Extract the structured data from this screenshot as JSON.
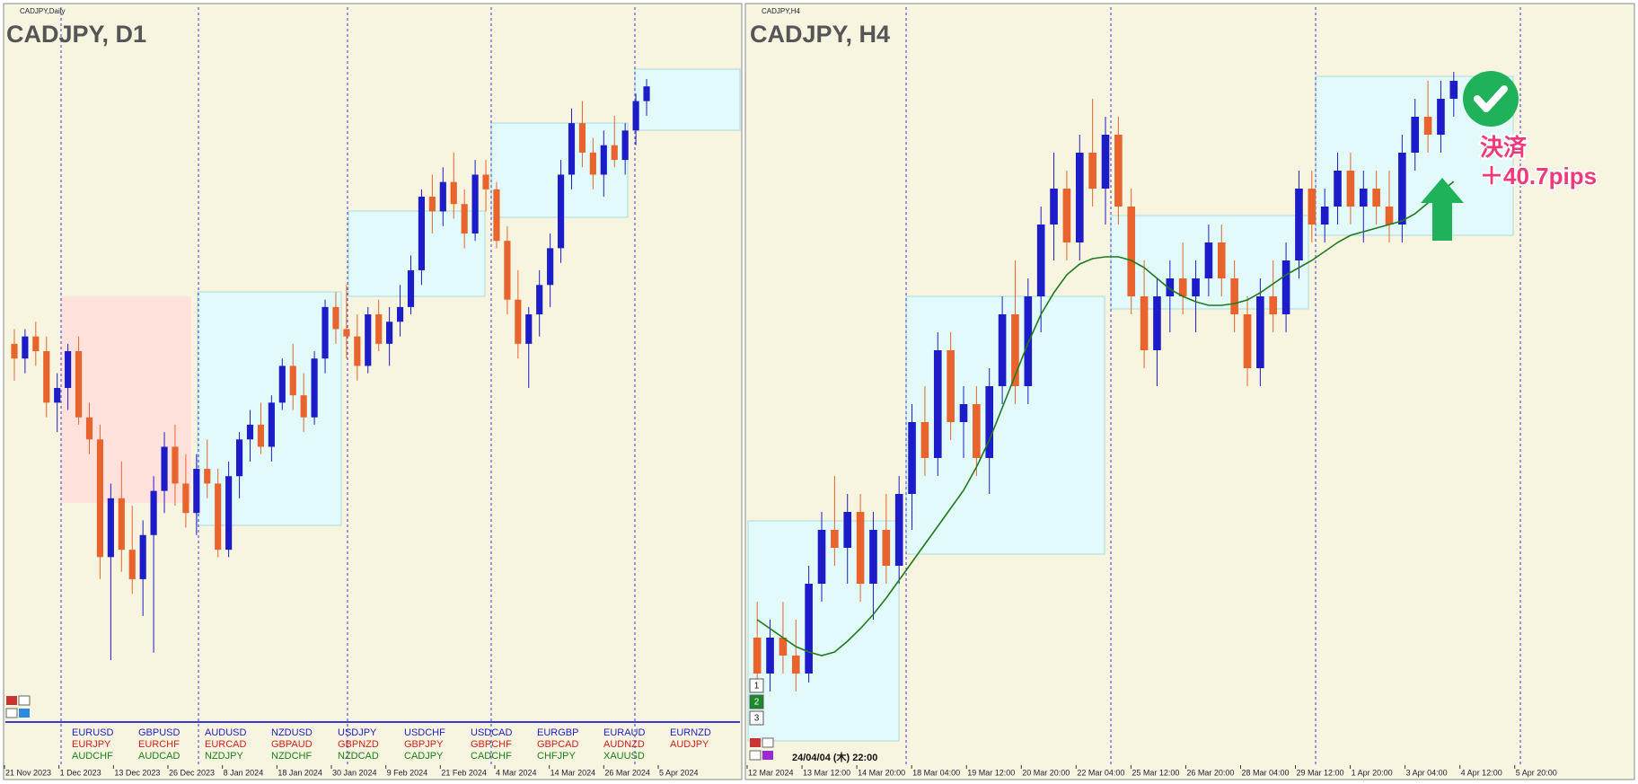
{
  "panels": [
    {
      "caption": "CADJPY,Daily",
      "title": "CADJPY, D1",
      "dates": [
        "21 Nov 2023",
        "1 Dec 2023",
        "13 Dec 2023",
        "26 Dec 2023",
        "8 Jan 2024",
        "18 Jan 2024",
        "30 Jan 2024",
        "9 Feb 2024",
        "21 Feb 2024",
        "4 Mar 2024",
        "14 Mar 2024",
        "26 Mar 2024",
        "5 Apr 2024"
      ],
      "candles": [
        [
          108.8,
          109.0,
          108.3,
          108.6
        ],
        [
          108.6,
          109.0,
          108.4,
          108.9
        ],
        [
          108.9,
          109.1,
          108.5,
          108.7
        ],
        [
          108.7,
          108.9,
          107.8,
          108.0
        ],
        [
          108.0,
          108.4,
          107.6,
          108.2
        ],
        [
          108.2,
          108.8,
          107.9,
          108.7
        ],
        [
          108.7,
          108.9,
          107.7,
          107.8
        ],
        [
          107.8,
          108.0,
          107.3,
          107.5
        ],
        [
          107.5,
          107.7,
          105.6,
          105.9
        ],
        [
          105.9,
          106.9,
          104.5,
          106.7
        ],
        [
          106.7,
          107.2,
          105.7,
          106.0
        ],
        [
          106.0,
          106.6,
          105.4,
          105.6
        ],
        [
          105.6,
          106.4,
          105.1,
          106.2
        ],
        [
          106.2,
          107.0,
          104.6,
          106.8
        ],
        [
          106.8,
          107.6,
          106.5,
          107.4
        ],
        [
          107.4,
          107.7,
          106.6,
          106.9
        ],
        [
          106.9,
          107.3,
          106.3,
          106.5
        ],
        [
          106.5,
          107.3,
          106.2,
          107.1
        ],
        [
          107.1,
          107.5,
          106.7,
          106.9
        ],
        [
          106.9,
          107.1,
          105.9,
          106.0
        ],
        [
          106.0,
          107.2,
          105.9,
          107.0
        ],
        [
          107.0,
          107.6,
          106.7,
          107.5
        ],
        [
          107.5,
          107.9,
          107.2,
          107.7
        ],
        [
          107.7,
          108.0,
          107.3,
          107.4
        ],
        [
          107.4,
          108.1,
          107.2,
          108.0
        ],
        [
          108.0,
          108.6,
          107.9,
          108.5
        ],
        [
          108.5,
          108.8,
          107.9,
          108.1
        ],
        [
          108.1,
          108.4,
          107.6,
          107.8
        ],
        [
          107.8,
          108.7,
          107.7,
          108.6
        ],
        [
          108.6,
          109.4,
          108.4,
          109.3
        ],
        [
          109.3,
          109.5,
          108.8,
          109.0
        ],
        [
          109.0,
          109.6,
          108.6,
          108.9
        ],
        [
          108.9,
          109.2,
          108.3,
          108.5
        ],
        [
          108.5,
          109.3,
          108.4,
          109.2
        ],
        [
          109.2,
          109.4,
          108.7,
          108.8
        ],
        [
          108.8,
          109.3,
          108.5,
          109.1
        ],
        [
          109.1,
          109.6,
          108.9,
          109.3
        ],
        [
          109.3,
          110.0,
          109.2,
          109.8
        ],
        [
          109.8,
          110.9,
          109.6,
          110.8
        ],
        [
          110.8,
          111.1,
          110.3,
          110.6
        ],
        [
          110.6,
          111.2,
          110.4,
          111.0
        ],
        [
          111.0,
          111.4,
          110.5,
          110.7
        ],
        [
          110.7,
          110.9,
          110.1,
          110.3
        ],
        [
          110.3,
          111.3,
          110.2,
          111.1
        ],
        [
          111.1,
          111.3,
          110.6,
          110.9
        ],
        [
          110.9,
          111.0,
          110.1,
          110.2
        ],
        [
          110.2,
          110.4,
          109.2,
          109.4
        ],
        [
          109.4,
          109.8,
          108.6,
          108.8
        ],
        [
          108.8,
          109.3,
          108.2,
          109.2
        ],
        [
          109.2,
          109.8,
          108.9,
          109.6
        ],
        [
          109.6,
          110.3,
          109.3,
          110.1
        ],
        [
          110.1,
          111.3,
          109.9,
          111.1
        ],
        [
          111.1,
          112.0,
          110.9,
          111.8
        ],
        [
          111.8,
          112.1,
          111.2,
          111.4
        ],
        [
          111.4,
          111.6,
          110.9,
          111.1
        ],
        [
          111.1,
          111.7,
          110.8,
          111.5
        ],
        [
          111.5,
          111.9,
          111.2,
          111.3
        ],
        [
          111.3,
          111.8,
          111.1,
          111.7
        ],
        [
          111.7,
          112.2,
          111.5,
          112.1
        ],
        [
          112.1,
          112.4,
          111.9,
          112.3
        ]
      ]
    },
    {
      "caption": "CADJPY,H4",
      "title": "CADJPY, H4",
      "dates": [
        "12 Mar 2024",
        "13 Mar 12:00",
        "14 Mar 20:00",
        "18 Mar 04:00",
        "19 Mar 12:00",
        "20 Mar 20:00",
        "22 Mar 04:00",
        "25 Mar 12:00",
        "26 Mar 20:00",
        "28 Mar 04:00",
        "29 Mar 12:00",
        "1 Apr 20:00",
        "3 Apr 04:00",
        "4 Apr 12:00",
        "5 Apr 20:00"
      ],
      "candles": [
        [
          109.2,
          109.4,
          108.9,
          109.0
        ],
        [
          109.0,
          109.3,
          108.9,
          109.2
        ],
        [
          109.2,
          109.4,
          109.0,
          109.1
        ],
        [
          109.1,
          109.3,
          108.9,
          109.0
        ],
        [
          109.0,
          109.6,
          108.95,
          109.5
        ],
        [
          109.5,
          109.9,
          109.4,
          109.8
        ],
        [
          109.8,
          110.1,
          109.6,
          109.7
        ],
        [
          109.7,
          110.0,
          109.5,
          109.9
        ],
        [
          109.9,
          110.0,
          109.4,
          109.5
        ],
        [
          109.5,
          109.9,
          109.3,
          109.8
        ],
        [
          109.8,
          110.0,
          109.5,
          109.6
        ],
        [
          109.6,
          110.1,
          109.5,
          110.0
        ],
        [
          110.0,
          110.5,
          109.8,
          110.4
        ],
        [
          110.4,
          110.6,
          110.1,
          110.2
        ],
        [
          110.2,
          110.9,
          110.1,
          110.8
        ],
        [
          110.8,
          110.9,
          110.3,
          110.4
        ],
        [
          110.4,
          110.6,
          110.2,
          110.5
        ],
        [
          110.5,
          110.6,
          110.1,
          110.2
        ],
        [
          110.2,
          110.7,
          110.0,
          110.6
        ],
        [
          110.6,
          111.1,
          110.5,
          111.0
        ],
        [
          111.0,
          111.3,
          110.5,
          110.6
        ],
        [
          110.6,
          111.2,
          110.5,
          111.1
        ],
        [
          111.1,
          111.6,
          110.9,
          111.5
        ],
        [
          111.5,
          111.9,
          111.3,
          111.7
        ],
        [
          111.7,
          111.8,
          111.3,
          111.4
        ],
        [
          111.4,
          112.0,
          111.3,
          111.9
        ],
        [
          111.9,
          112.2,
          111.6,
          111.7
        ],
        [
          111.7,
          112.1,
          111.5,
          112.0
        ],
        [
          112.0,
          112.1,
          111.5,
          111.6
        ],
        [
          111.6,
          111.7,
          111.0,
          111.1
        ],
        [
          111.1,
          111.3,
          110.7,
          110.8
        ],
        [
          110.8,
          111.2,
          110.6,
          111.1
        ],
        [
          111.1,
          111.3,
          110.9,
          111.2
        ],
        [
          111.2,
          111.4,
          111.0,
          111.1
        ],
        [
          111.1,
          111.3,
          110.9,
          111.2
        ],
        [
          111.2,
          111.5,
          111.1,
          111.4
        ],
        [
          111.4,
          111.5,
          111.1,
          111.2
        ],
        [
          111.2,
          111.3,
          110.9,
          111.0
        ],
        [
          111.0,
          111.1,
          110.6,
          110.7
        ],
        [
          110.7,
          111.2,
          110.6,
          111.1
        ],
        [
          111.1,
          111.3,
          110.9,
          111.0
        ],
        [
          111.0,
          111.4,
          110.9,
          111.3
        ],
        [
          111.3,
          111.8,
          111.2,
          111.7
        ],
        [
          111.7,
          111.8,
          111.4,
          111.5
        ],
        [
          111.5,
          111.7,
          111.4,
          111.6
        ],
        [
          111.6,
          111.9,
          111.5,
          111.8
        ],
        [
          111.8,
          111.9,
          111.5,
          111.6
        ],
        [
          111.6,
          111.8,
          111.4,
          111.7
        ],
        [
          111.7,
          111.8,
          111.5,
          111.6
        ],
        [
          111.6,
          111.8,
          111.4,
          111.5
        ],
        [
          111.5,
          112.0,
          111.4,
          111.9
        ],
        [
          111.9,
          112.2,
          111.8,
          112.1
        ],
        [
          112.1,
          112.3,
          111.9,
          112.0
        ],
        [
          112.0,
          112.3,
          111.9,
          112.2
        ],
        [
          112.2,
          112.35,
          112.1,
          112.3
        ]
      ],
      "ma": [
        109.3,
        109.25,
        109.2,
        109.15,
        109.12,
        109.1,
        109.12,
        109.18,
        109.25,
        109.33,
        109.42,
        109.52,
        109.62,
        109.72,
        109.82,
        109.92,
        110.02,
        110.15,
        110.3,
        110.48,
        110.66,
        110.84,
        111.0,
        111.12,
        111.22,
        111.28,
        111.31,
        111.32,
        111.32,
        111.3,
        111.26,
        111.2,
        111.14,
        111.1,
        111.07,
        111.05,
        111.05,
        111.06,
        111.08,
        111.12,
        111.17,
        111.22,
        111.26,
        111.3,
        111.35,
        111.4,
        111.44,
        111.46,
        111.48,
        111.5,
        111.52,
        111.56,
        111.62,
        111.68,
        111.74
      ],
      "ma_color": "#1f7a1f"
    }
  ],
  "colors": {
    "bull": "#1c1cc8",
    "bear": "#e8642c"
  },
  "symbols": [
    [
      "EURUSD",
      "EURJPY",
      "AUDCHF"
    ],
    [
      "GBPUSD",
      "EURCHF",
      "AUDCAD"
    ],
    [
      "AUDUSD",
      "EURCAD",
      "NZDJPY"
    ],
    [
      "NZDUSD",
      "GBPAUD",
      "NZDCHF"
    ],
    [
      "USDJPY",
      "GBPNZD",
      "NZDCAD"
    ],
    [
      "USDCHF",
      "GBPJPY",
      "CADJPY"
    ],
    [
      "USDCAD",
      "GBPCHF",
      "CADCHF"
    ],
    [
      "EURGBP",
      "GBPCAD",
      "CHFJPY"
    ],
    [
      "EURAUD",
      "AUDNZD",
      "XAUUSD"
    ],
    [
      "EURNZD",
      "AUDJPY"
    ]
  ],
  "symbol_row_colors": [
    "#1c1cc8",
    "#d02020",
    "#1a801a"
  ],
  "timeframe_buttons": [
    "1",
    "2",
    "3"
  ],
  "cursor_time": "24/04/04 (木) 22:00",
  "annotation": {
    "action": "決済",
    "result": "＋40.7pips"
  }
}
